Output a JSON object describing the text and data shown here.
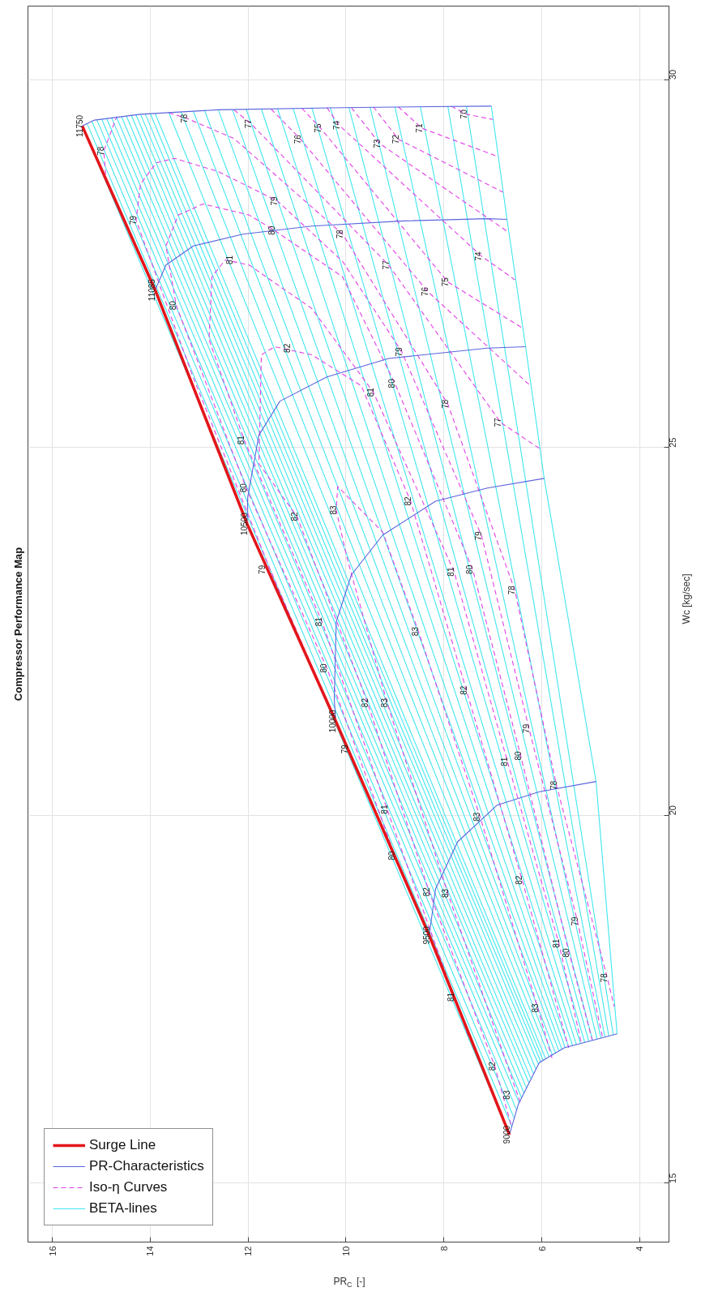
{
  "chart_data": {
    "type": "line",
    "title": "Compressor Performance Map",
    "xlabel": "PR$_{C}$ [-]",
    "ylabel": "Wc [kg/sec]",
    "xlim": [
      16.5,
      3.4
    ],
    "ylim": [
      14.2,
      31.0
    ],
    "xticks": [
      16,
      14,
      12,
      10,
      8,
      6,
      4
    ],
    "yticks": [
      15,
      20,
      25,
      30
    ],
    "grid": true,
    "legend": "bottom left",
    "line_style": "solid",
    "series": [
      {
        "name": "Surge Line",
        "color": "#e3161b",
        "values": [
          15.66,
          18.37,
          21.28,
          23.96,
          27.14,
          29.37
        ],
        "x": [
          6.66,
          8.3,
          10.21,
          12.02,
          13.9,
          15.39
        ]
      },
      {
        "name": "PR-Characteristics",
        "color": "#5a64dc",
        "values": [
          15.66,
          16.07,
          16.64,
          16.84,
          17.03,
          null,
          18.37,
          19.0,
          19.64,
          20.14,
          20.32,
          20.46,
          null,
          21.28,
          21.58,
          22.63,
          23.27,
          23.81,
          24.27,
          24.45,
          24.58,
          null,
          23.96,
          24.32,
          25.17,
          25.63,
          25.96,
          26.21,
          26.35,
          26.37,
          null,
          27.14,
          27.48,
          27.74,
          27.9,
          28.01,
          28.08,
          28.11,
          28.1,
          null,
          29.37,
          29.45,
          29.53,
          29.59,
          29.62,
          29.64,
          29.64
        ],
        "x": [
          6.66,
          6.48,
          6.05,
          5.54,
          4.46,
          null,
          8.3,
          8.17,
          7.72,
          6.91,
          6.05,
          4.89,
          null,
          10.21,
          10.24,
          10.2,
          9.89,
          9.25,
          8.17,
          7.11,
          5.95,
          null,
          12.02,
          12.01,
          11.78,
          11.35,
          10.39,
          9.13,
          7.11,
          6.33,
          null,
          13.9,
          13.68,
          13.12,
          12.11,
          10.7,
          8.81,
          7.11,
          6.71,
          null,
          15.39,
          15.14,
          14.2,
          12.61,
          10.07,
          7.11,
          7.03
        ]
      },
      {
        "name": "Iso-η Curves",
        "color": "#e040e6",
        "line_style": "dashed",
        "values": [
          16.1,
          18.94,
          21.53,
          23.5,
          24.15,
          24.47,
          23.85,
          22.5,
          19.98,
          17.38,
          16.7,
          null,
          15.8,
          16.59,
          18.96,
          21.53,
          24.06,
          24.78,
          26.26,
          26.37,
          26.26,
          25.84,
          24.27,
          21.7,
          19.12,
          16.84,
          null,
          17.0,
          17.53,
          20.08,
          22.63,
          25.1,
          26.47,
          27.32,
          27.55,
          27.48,
          26.89,
          25.75,
          23.31,
          20.73,
          18.26,
          16.9,
          null,
          19.0,
          19.45,
          22.0,
          24.45,
          26.93,
          27.74,
          28.16,
          28.31,
          28.16,
          27.95,
          27.32,
          25.87,
          23.34,
          20.81,
          18.13,
          16.95,
          null,
          20.5,
          20.9,
          23.34,
          26.0,
          28.09,
          28.58,
          28.87,
          28.93,
          28.75,
          28.35,
          27.53,
          26.3,
          23.8,
          21.18,
          18.56,
          16.99,
          null,
          28.6,
          29.03,
          29.49,
          null,
          29.55,
          29.47,
          29.2,
          27.9,
          25.59,
          23.06,
          20.41,
          17.79,
          17.4,
          null,
          29.59,
          29.4,
          27.48,
          25.34,
          24.98,
          null,
          29.6,
          29.19,
          27.12,
          25.85,
          null,
          29.61,
          29.34,
          27.25,
          26.63,
          null,
          29.62,
          29.38,
          27.6,
          27.28,
          null,
          29.62,
          29.13,
          27.94,
          null,
          29.63,
          29.19,
          28.47,
          null,
          29.63,
          29.34,
          28.95,
          null,
          29.64,
          29.53,
          29.46
        ],
        "x": [
          6.44,
          7.92,
          9.16,
          9.98,
          10.2,
          10.17,
          9.25,
          8.52,
          7.26,
          6.08,
          5.79,
          null,
          6.63,
          6.96,
          8.3,
          9.56,
          11.0,
          11.78,
          11.73,
          11.46,
          10.7,
          9.69,
          8.68,
          7.54,
          6.4,
          5.45,
          null,
          7.5,
          7.79,
          9.16,
          10.49,
          12.08,
          12.8,
          12.74,
          12.47,
          11.98,
          10.7,
          9.44,
          7.79,
          6.7,
          5.65,
          5.19,
          null,
          8.7,
          9.0,
          10.39,
          12.04,
          13.47,
          13.68,
          13.43,
          12.92,
          11.98,
          11.46,
          10.07,
          9.0,
          7.41,
          6.43,
          5.44,
          4.97,
          null,
          9.7,
          9.97,
          11.55,
          13.15,
          14.29,
          14.2,
          13.88,
          13.5,
          12.61,
          11.4,
          10.07,
          8.86,
          7.23,
          6.26,
          5.27,
          4.76,
          null,
          14.9,
          14.95,
          14.69,
          null,
          13.62,
          13.24,
          12.29,
          10.07,
          7.92,
          6.55,
          5.7,
          4.66,
          4.52,
          null,
          12.29,
          11.94,
          9.13,
          6.84,
          6.03,
          null,
          11.53,
          10.93,
          8.33,
          6.25,
          null,
          10.9,
          10.52,
          7.92,
          6.41,
          null,
          10.39,
          10.14,
          7.23,
          6.55,
          null,
          9.89,
          9.31,
          6.71,
          null,
          9.44,
          8.93,
          6.79,
          null,
          8.93,
          8.45,
          6.88,
          null,
          7.85,
          7.54,
          7.0
        ]
      },
      {
        "name": "BETA-lines",
        "color": "#40e6ee",
        "values": [
          15.66,
          29.37,
          null,
          15.77,
          29.4,
          null,
          15.88,
          29.43,
          null,
          15.99,
          29.45,
          null,
          16.09,
          29.46,
          null,
          16.16,
          29.47,
          null,
          16.22,
          29.48,
          null,
          16.29,
          29.49,
          null,
          16.36,
          29.5,
          null,
          16.42,
          29.51,
          null,
          16.49,
          29.52,
          null,
          16.55,
          29.52,
          null,
          16.62,
          29.53,
          null,
          16.65,
          29.53,
          null,
          16.67,
          29.54,
          null,
          16.69,
          29.54,
          null,
          16.72,
          29.55,
          null,
          16.74,
          29.56,
          null,
          16.77,
          29.57,
          null,
          16.8,
          29.58,
          null,
          16.82,
          29.59,
          null,
          16.84,
          29.59,
          null,
          16.85,
          29.6,
          null,
          16.87,
          29.6,
          null,
          16.88,
          29.61,
          null,
          16.9,
          29.61,
          null,
          16.91,
          29.62,
          null,
          16.93,
          29.62,
          null,
          16.94,
          29.62,
          null,
          16.96,
          29.63,
          null,
          16.97,
          29.63,
          null,
          16.99,
          29.63,
          null,
          17.0,
          29.64,
          null,
          17.02,
          29.64,
          null,
          17.03,
          20.46,
          24.58,
          26.37,
          28.1,
          29.64
        ],
        "x": [
          6.66,
          15.39,
          null,
          6.61,
          15.29,
          null,
          6.56,
          15.19,
          null,
          6.51,
          15.09,
          null,
          6.46,
          14.99,
          null,
          6.41,
          14.89,
          null,
          6.36,
          14.79,
          null,
          6.31,
          14.69,
          null,
          6.26,
          14.59,
          null,
          6.22,
          14.49,
          null,
          6.17,
          14.39,
          null,
          6.12,
          14.29,
          null,
          6.07,
          14.2,
          null,
          6.02,
          14.1,
          null,
          5.97,
          14.0,
          null,
          5.92,
          13.9,
          null,
          5.85,
          13.62,
          null,
          5.78,
          13.37,
          null,
          5.72,
          13.12,
          null,
          5.65,
          12.89,
          null,
          5.59,
          12.61,
          null,
          5.52,
          12.32,
          null,
          5.45,
          12.04,
          null,
          5.37,
          11.73,
          null,
          5.29,
          11.4,
          null,
          5.21,
          11.08,
          null,
          5.12,
          10.7,
          null,
          5.04,
          10.32,
          null,
          4.96,
          9.94,
          null,
          4.87,
          9.51,
          null,
          4.79,
          9.0,
          null,
          4.71,
          8.48,
          null,
          4.63,
          7.92,
          null,
          4.54,
          7.54,
          null,
          4.46,
          4.89,
          5.95,
          6.33,
          6.71,
          7.03
        ]
      }
    ],
    "annotations": [
      {
        "text": "9000",
        "y": 15.66,
        "x": 6.66
      },
      {
        "text": "9500",
        "y": 18.37,
        "x": 8.3
      },
      {
        "text": "10000",
        "y": 21.28,
        "x": 10.21
      },
      {
        "text": "10500",
        "y": 23.96,
        "x": 12.02
      },
      {
        "text": "11085",
        "y": 27.14,
        "x": 13.9
      },
      {
        "text": "11750",
        "y": 29.37,
        "x": 15.39
      },
      {
        "text": "78",
        "y": 29.03,
        "x": 14.95
      },
      {
        "text": "78",
        "y": 29.47,
        "x": 13.24
      },
      {
        "text": "77",
        "y": 29.4,
        "x": 11.94
      },
      {
        "text": "76",
        "y": 29.19,
        "x": 10.93
      },
      {
        "text": "75",
        "y": 29.34,
        "x": 10.52
      },
      {
        "text": "74",
        "y": 29.38,
        "x": 10.14
      },
      {
        "text": "73",
        "y": 29.13,
        "x": 9.31
      },
      {
        "text": "72",
        "y": 29.19,
        "x": 8.93
      },
      {
        "text": "71",
        "y": 29.34,
        "x": 8.45
      },
      {
        "text": "70",
        "y": 29.53,
        "x": 7.54
      },
      {
        "text": "79",
        "y": 28.09,
        "x": 14.29
      },
      {
        "text": "79",
        "y": 28.35,
        "x": 11.4
      },
      {
        "text": "80",
        "y": 27.95,
        "x": 11.46
      },
      {
        "text": "78",
        "y": 27.9,
        "x": 10.07
      },
      {
        "text": "81",
        "y": 27.55,
        "x": 12.32
      },
      {
        "text": "77",
        "y": 27.48,
        "x": 9.13
      },
      {
        "text": "76",
        "y": 27.12,
        "x": 8.33
      },
      {
        "text": "75",
        "y": 27.25,
        "x": 7.92
      },
      {
        "text": "74",
        "y": 27.6,
        "x": 7.23
      },
      {
        "text": "80",
        "y": 26.93,
        "x": 13.47
      },
      {
        "text": "82",
        "y": 26.35,
        "x": 11.15
      },
      {
        "text": "79",
        "y": 26.3,
        "x": 8.86
      },
      {
        "text": "81",
        "y": 25.75,
        "x": 9.44
      },
      {
        "text": "80",
        "y": 25.87,
        "x": 9.0
      },
      {
        "text": "78",
        "y": 25.59,
        "x": 7.92
      },
      {
        "text": "77",
        "y": 25.34,
        "x": 6.84
      },
      {
        "text": "81",
        "y": 25.1,
        "x": 12.08
      },
      {
        "text": "80",
        "y": 24.45,
        "x": 12.04
      },
      {
        "text": "79",
        "y": 23.34,
        "x": 11.66
      },
      {
        "text": "82",
        "y": 24.06,
        "x": 11.0
      },
      {
        "text": "83",
        "y": 24.15,
        "x": 10.2
      },
      {
        "text": "82",
        "y": 24.27,
        "x": 8.68
      },
      {
        "text": "79",
        "y": 23.8,
        "x": 7.23
      },
      {
        "text": "81",
        "y": 23.31,
        "x": 7.79
      },
      {
        "text": "80",
        "y": 23.34,
        "x": 7.41
      },
      {
        "text": "78",
        "y": 23.06,
        "x": 6.55
      },
      {
        "text": "81",
        "y": 22.63,
        "x": 10.49
      },
      {
        "text": "83",
        "y": 22.5,
        "x": 8.52
      },
      {
        "text": "80",
        "y": 22.0,
        "x": 10.39
      },
      {
        "text": "82",
        "y": 21.53,
        "x": 9.56
      },
      {
        "text": "83",
        "y": 21.53,
        "x": 9.16
      },
      {
        "text": "82",
        "y": 21.7,
        "x": 7.54
      },
      {
        "text": "79",
        "y": 20.9,
        "x": 9.97
      },
      {
        "text": "81",
        "y": 20.08,
        "x": 9.16
      },
      {
        "text": "83",
        "y": 19.98,
        "x": 7.26
      },
      {
        "text": "80",
        "y": 19.45,
        "x": 9.0
      },
      {
        "text": "82",
        "y": 18.96,
        "x": 8.3
      },
      {
        "text": "83",
        "y": 18.94,
        "x": 7.92
      },
      {
        "text": "81",
        "y": 17.53,
        "x": 7.79
      },
      {
        "text": "82",
        "y": 16.59,
        "x": 6.96
      },
      {
        "text": "83",
        "y": 16.2,
        "x": 6.65
      },
      {
        "text": "79",
        "y": 21.18,
        "x": 6.26
      },
      {
        "text": "81",
        "y": 20.73,
        "x": 6.7
      },
      {
        "text": "80",
        "y": 20.81,
        "x": 6.43
      },
      {
        "text": "78",
        "y": 20.41,
        "x": 5.7
      },
      {
        "text": "82",
        "y": 19.12,
        "x": 6.4
      },
      {
        "text": "79",
        "y": 18.56,
        "x": 5.27
      },
      {
        "text": "81",
        "y": 18.26,
        "x": 5.65
      },
      {
        "text": "80",
        "y": 18.13,
        "x": 5.44
      },
      {
        "text": "78",
        "y": 17.79,
        "x": 4.66
      },
      {
        "text": "83",
        "y": 17.38,
        "x": 6.08
      }
    ]
  }
}
